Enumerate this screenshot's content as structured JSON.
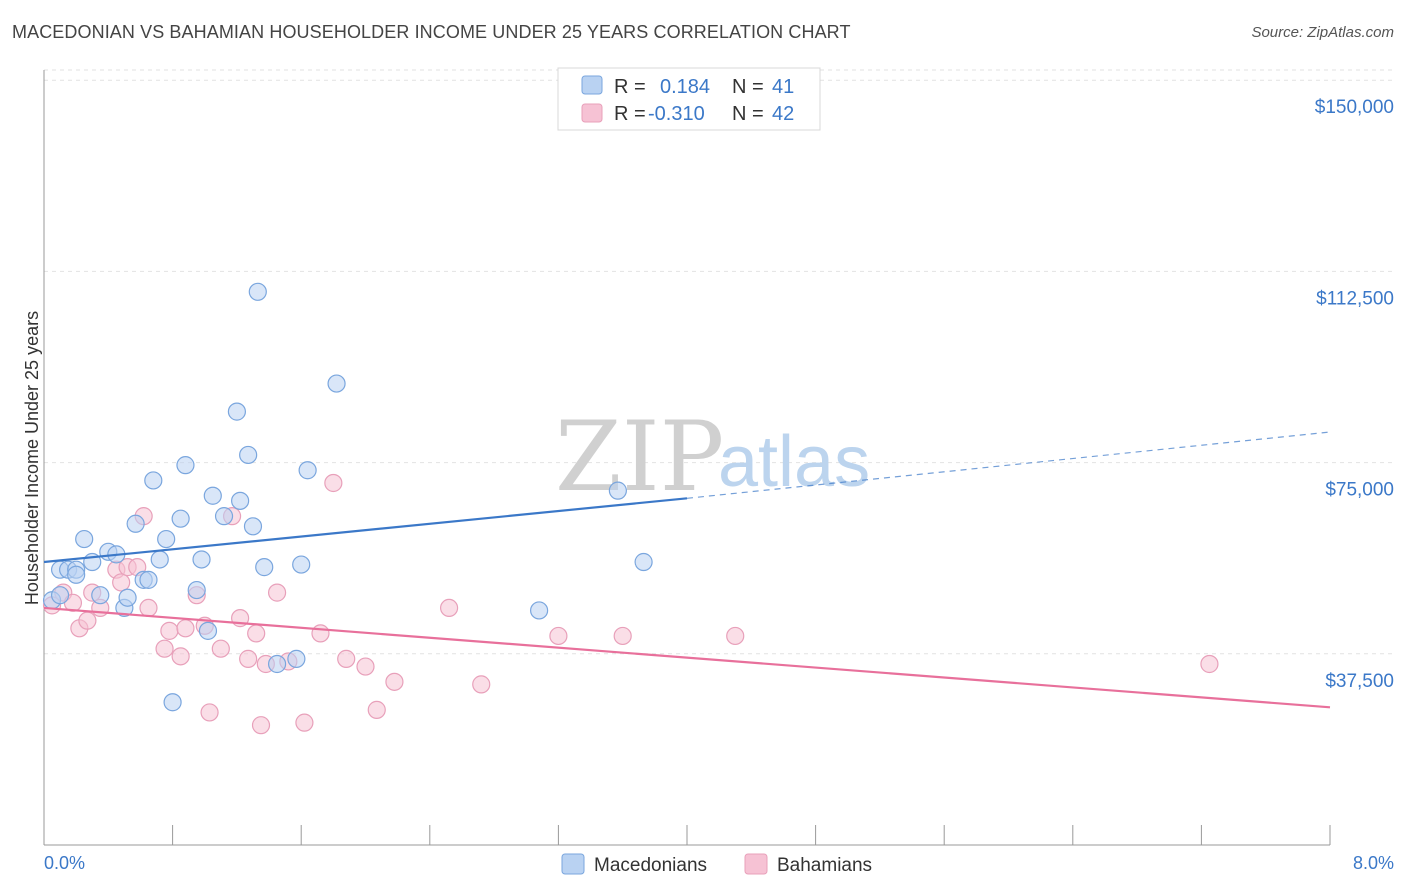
{
  "title": "MACEDONIAN VS BAHAMIAN HOUSEHOLDER INCOME UNDER 25 YEARS CORRELATION CHART",
  "source": "Source: ZipAtlas.com",
  "watermark": {
    "zip": "ZIP",
    "atlas": "atlas"
  },
  "legend": {
    "r_label": "R =",
    "n_label": "N =",
    "rows": [
      {
        "r": "0.184",
        "n": "41"
      },
      {
        "r": "-0.310",
        "n": "42"
      }
    ]
  },
  "colors": {
    "blue": "#3b78c8",
    "blue_fill": "#b9d2f2",
    "pink": "#e8709b",
    "pink_fill": "#f6c2d4"
  },
  "chart_data": {
    "type": "scatter",
    "xlabel": "",
    "ylabel": "Householder Income Under 25 years",
    "xlim": [
      0,
      8
    ],
    "ylim": [
      0,
      152000
    ],
    "x_ticks": [
      0,
      0.8,
      1.6,
      2.4,
      3.2,
      4.0,
      4.8,
      5.6,
      6.4,
      7.2,
      8.0
    ],
    "x_tick_labels": {
      "first": "0.0%",
      "last": "8.0%"
    },
    "y_ticks": [
      37500,
      75000,
      112500,
      150000
    ],
    "y_tick_labels": [
      "$37,500",
      "$75,000",
      "$112,500",
      "$150,000"
    ],
    "grid": "horizontal dashed",
    "legend_position": "bottom-center",
    "series": [
      {
        "name": "Macedonians",
        "points": [
          [
            0.05,
            48000
          ],
          [
            0.1,
            54000
          ],
          [
            0.1,
            49000
          ],
          [
            0.15,
            54000
          ],
          [
            0.2,
            54000
          ],
          [
            0.25,
            60000
          ],
          [
            0.3,
            55500
          ],
          [
            0.35,
            49000
          ],
          [
            0.4,
            57500
          ],
          [
            0.45,
            57000
          ],
          [
            0.5,
            46500
          ],
          [
            0.52,
            48500
          ],
          [
            0.57,
            63000
          ],
          [
            0.62,
            52000
          ],
          [
            0.65,
            52000
          ],
          [
            0.68,
            71500
          ],
          [
            0.72,
            56000
          ],
          [
            0.76,
            60000
          ],
          [
            0.8,
            28000
          ],
          [
            0.85,
            64000
          ],
          [
            0.88,
            74500
          ],
          [
            0.95,
            50000
          ],
          [
            0.98,
            56000
          ],
          [
            1.02,
            42000
          ],
          [
            1.05,
            68500
          ],
          [
            1.12,
            64500
          ],
          [
            1.2,
            85000
          ],
          [
            1.22,
            67500
          ],
          [
            1.27,
            76500
          ],
          [
            1.3,
            62500
          ],
          [
            1.33,
            108500
          ],
          [
            1.37,
            54500
          ],
          [
            1.45,
            35500
          ],
          [
            1.57,
            36500
          ],
          [
            1.6,
            55000
          ],
          [
            1.64,
            73500
          ],
          [
            1.82,
            90500
          ],
          [
            3.08,
            46000
          ],
          [
            3.57,
            69500
          ],
          [
            3.73,
            55500
          ],
          [
            0.2,
            53000
          ]
        ],
        "trend": {
          "x0": 0,
          "y0": 55500,
          "x1": 4.0,
          "y1": 68000,
          "dashed_to": {
            "x": 8.0,
            "y": 81000
          }
        }
      },
      {
        "name": "Bahamians",
        "points": [
          [
            0.05,
            47000
          ],
          [
            0.12,
            49500
          ],
          [
            0.18,
            47500
          ],
          [
            0.22,
            42500
          ],
          [
            0.27,
            44000
          ],
          [
            0.3,
            49500
          ],
          [
            0.35,
            46500
          ],
          [
            0.45,
            54000
          ],
          [
            0.48,
            51500
          ],
          [
            0.52,
            54500
          ],
          [
            0.58,
            54500
          ],
          [
            0.62,
            64500
          ],
          [
            0.65,
            46500
          ],
          [
            0.75,
            38500
          ],
          [
            0.78,
            42000
          ],
          [
            0.85,
            37000
          ],
          [
            0.88,
            42500
          ],
          [
            0.95,
            49000
          ],
          [
            1.0,
            43000
          ],
          [
            1.03,
            26000
          ],
          [
            1.1,
            38500
          ],
          [
            1.17,
            64500
          ],
          [
            1.22,
            44500
          ],
          [
            1.27,
            36500
          ],
          [
            1.32,
            41500
          ],
          [
            1.35,
            23500
          ],
          [
            1.38,
            35500
          ],
          [
            1.45,
            49500
          ],
          [
            1.52,
            36000
          ],
          [
            1.62,
            24000
          ],
          [
            1.72,
            41500
          ],
          [
            1.8,
            71000
          ],
          [
            1.88,
            36500
          ],
          [
            2.0,
            35000
          ],
          [
            2.07,
            26500
          ],
          [
            2.18,
            32000
          ],
          [
            2.52,
            46500
          ],
          [
            2.72,
            31500
          ],
          [
            3.2,
            41000
          ],
          [
            3.6,
            41000
          ],
          [
            4.3,
            41000
          ],
          [
            7.25,
            35500
          ]
        ],
        "trend": {
          "x0": 0,
          "y0": 46500,
          "x1": 8.0,
          "y1": 27000
        }
      }
    ]
  }
}
